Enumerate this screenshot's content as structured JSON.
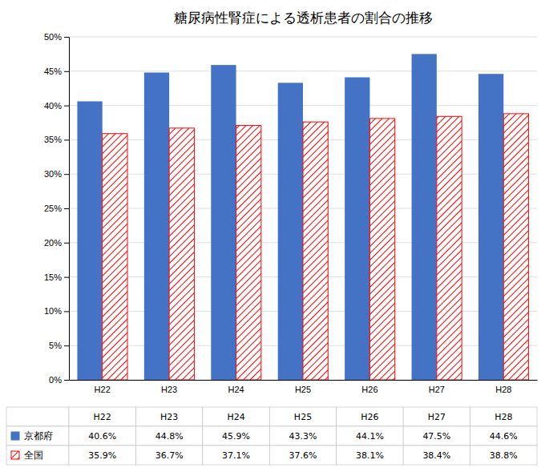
{
  "chart_data": {
    "type": "bar",
    "title": "糖尿病性腎症による透析患者の割合の推移",
    "categories": [
      "H22",
      "H23",
      "H24",
      "H25",
      "H26",
      "H27",
      "H28"
    ],
    "series": [
      {
        "name": "京都府",
        "color": "#4472C4",
        "values": [
          40.6,
          44.8,
          45.9,
          43.3,
          44.1,
          47.5,
          44.6
        ],
        "value_labels": [
          "40.6%",
          "44.8%",
          "45.9%",
          "43.3%",
          "44.1%",
          "47.5%",
          "44.6%"
        ]
      },
      {
        "name": "全国",
        "color": "#FF0000",
        "values": [
          35.9,
          36.7,
          37.1,
          37.6,
          38.1,
          38.4,
          38.8
        ],
        "value_labels": [
          "35.9%",
          "36.7%",
          "37.1%",
          "37.6%",
          "38.1%",
          "38.4%",
          "38.8%"
        ]
      }
    ],
    "ylim": [
      0,
      50
    ],
    "yticks": [
      {
        "value": 0,
        "label": "0%"
      },
      {
        "value": 5,
        "label": "5%"
      },
      {
        "value": 10,
        "label": "10%"
      },
      {
        "value": 15,
        "label": "15%"
      },
      {
        "value": 20,
        "label": "20%"
      },
      {
        "value": 25,
        "label": "25%"
      },
      {
        "value": 30,
        "label": "30%"
      },
      {
        "value": 35,
        "label": "35%"
      },
      {
        "value": 40,
        "label": "40%"
      },
      {
        "value": 45,
        "label": "45%"
      },
      {
        "value": 50,
        "label": "50%"
      }
    ],
    "grid": true,
    "legend": "bottom"
  }
}
